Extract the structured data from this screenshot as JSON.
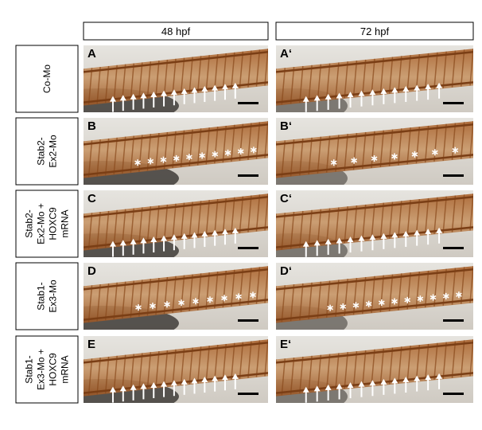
{
  "columns": [
    "48 hpf",
    "72 hpf"
  ],
  "rows": [
    {
      "label_lines": [
        "Co-Mo"
      ],
      "panels": [
        "A",
        "A‘"
      ]
    },
    {
      "label_lines": [
        "Stab2-",
        "Ex2-Mo"
      ],
      "panels": [
        "B",
        "B‘"
      ]
    },
    {
      "label_lines": [
        "Stab2-",
        "Ex2-Mo +",
        "HOXC9",
        "mRNA"
      ],
      "panels": [
        "C",
        "C‘"
      ]
    },
    {
      "label_lines": [
        "Stab1-",
        "Ex3-Mo"
      ],
      "panels": [
        "D",
        "D‘"
      ]
    },
    {
      "label_lines": [
        "Stab1-",
        "Ex3-Mo +",
        "HOXC9",
        "mRNA"
      ],
      "panels": [
        "E",
        "E‘"
      ]
    }
  ]
}
